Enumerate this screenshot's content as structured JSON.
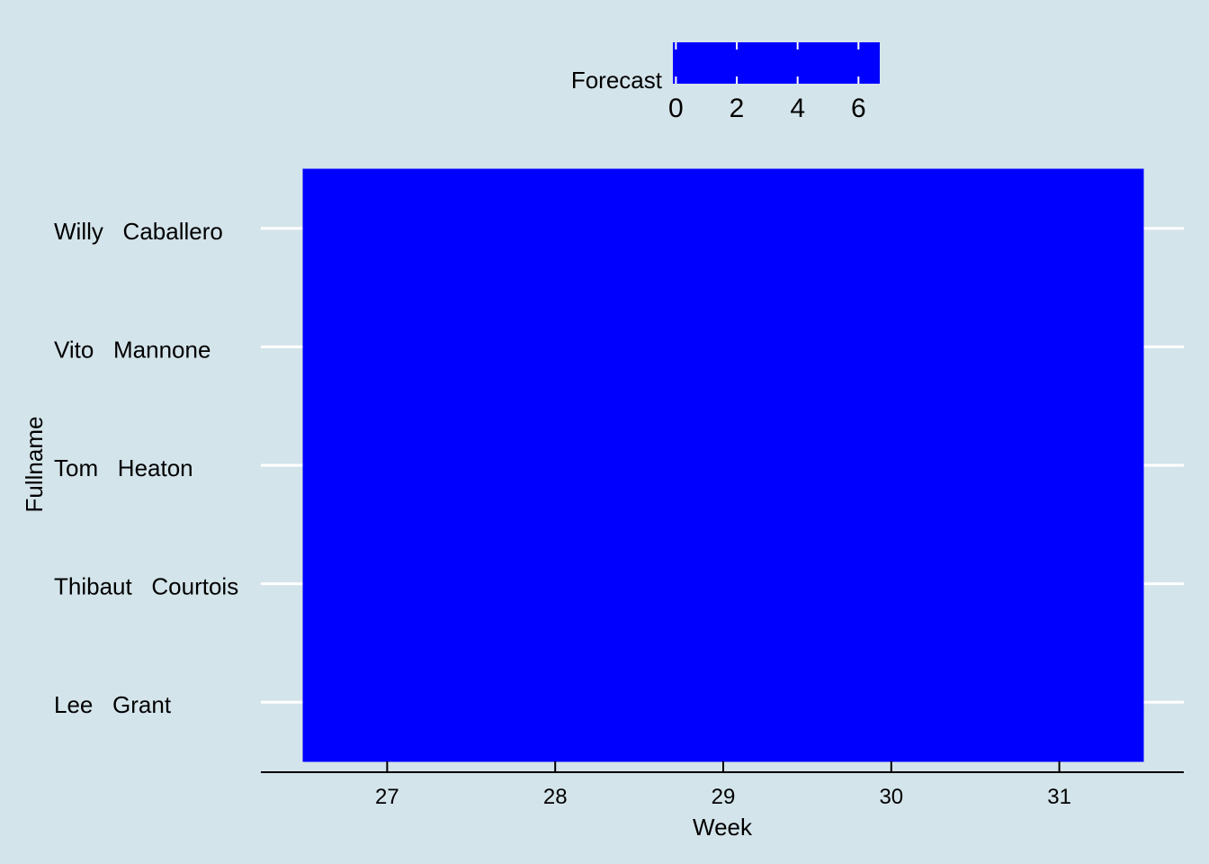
{
  "chart_data": {
    "type": "heatmap",
    "title": "",
    "xlabel": "Week",
    "ylabel": "Fullname",
    "x": [
      27,
      28,
      29,
      30,
      31
    ],
    "y": [
      "Willy   Caballero",
      "Vito   Mannone",
      "Tom   Heaton",
      "Thibaut   Courtois",
      "Lee   Grant"
    ],
    "xlim": [
      26.5,
      31.5
    ],
    "values": [
      [
        0,
        0,
        0,
        0,
        0
      ],
      [
        0,
        0,
        0,
        0,
        0
      ],
      [
        0,
        0,
        0,
        0,
        0
      ],
      [
        0,
        0,
        0,
        0,
        0
      ],
      [
        0,
        0,
        0,
        0,
        0
      ]
    ],
    "fill_color": "#0000ff",
    "background_color": "#d4e4eb",
    "gridline_color": "#ffffff",
    "legend": {
      "title": "Forecast",
      "position": "top",
      "ticks": [
        0,
        2,
        4,
        6
      ],
      "range": [
        -0.1,
        6.7
      ]
    }
  }
}
